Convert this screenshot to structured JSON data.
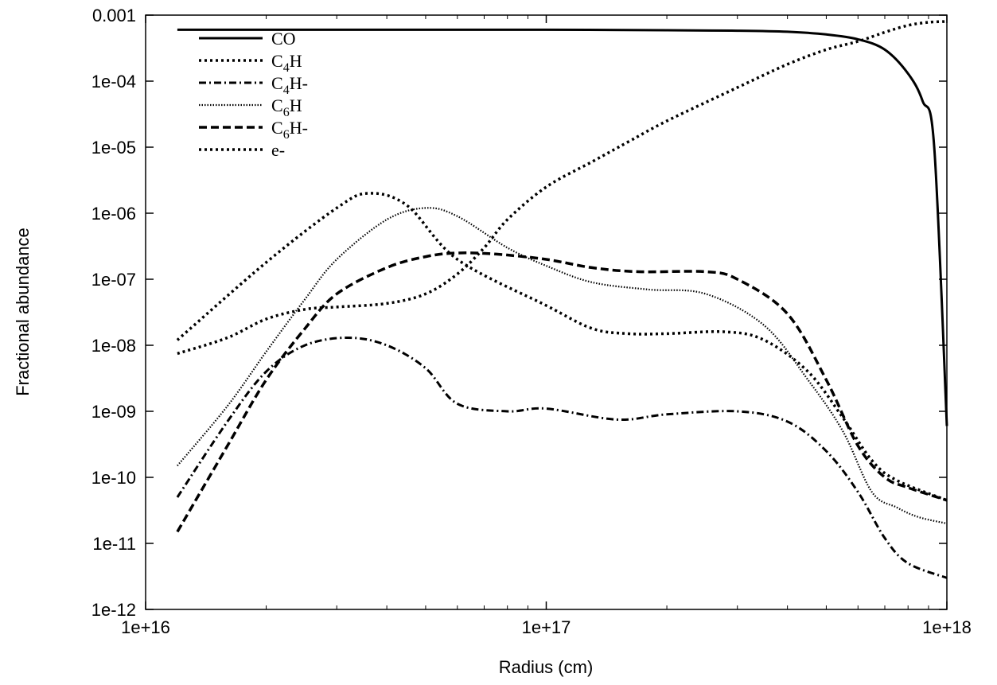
{
  "chart_data": {
    "type": "line",
    "xlabel": "Radius (cm)",
    "ylabel": "Fractional abundance",
    "x_scale": "log",
    "y_scale": "log",
    "xlim": [
      1e+16,
      1e+18
    ],
    "ylim": [
      1e-12,
      0.001
    ],
    "x_ticks": [
      {
        "value": 1e+16,
        "label": "1e+16"
      },
      {
        "value": 1e+17,
        "label": "1e+17"
      },
      {
        "value": 1e+18,
        "label": "1e+18"
      }
    ],
    "y_ticks": [
      {
        "value": 1e-12,
        "label": "1e-12"
      },
      {
        "value": 1e-11,
        "label": "1e-11"
      },
      {
        "value": 1e-10,
        "label": "1e-10"
      },
      {
        "value": 1e-09,
        "label": "1e-09"
      },
      {
        "value": 1e-08,
        "label": "1e-08"
      },
      {
        "value": 1e-07,
        "label": "1e-07"
      },
      {
        "value": 1e-06,
        "label": "1e-06"
      },
      {
        "value": 1e-05,
        "label": "1e-05"
      },
      {
        "value": 0.0001,
        "label": "1e-04"
      },
      {
        "value": 0.001,
        "label": "0.001"
      }
    ],
    "legend_position": "top-left",
    "grid": false,
    "series": [
      {
        "name": "CO",
        "legend_base": "CO",
        "legend_sub": "",
        "legend_sup": "",
        "style": "solid",
        "x": [
          1.2e+16,
          5e+16,
          1e+17,
          2e+17,
          3e+17,
          4e+17,
          5e+17,
          6e+17,
          7e+17,
          8e+17,
          8.7e+17,
          9.3e+17,
          1e+18
        ],
        "y": [
          0.0006,
          0.0006,
          0.0006,
          0.00059,
          0.00058,
          0.00056,
          0.00051,
          0.00043,
          0.0003,
          0.00013,
          5e-05,
          1e-05,
          6e-10
        ]
      },
      {
        "name": "C4H",
        "legend_base": "C",
        "legend_sub": "4",
        "legend_sup": "H",
        "style": "dotted",
        "x": [
          1.2e+16,
          2e+16,
          3e+16,
          3.6e+16,
          4.5e+16,
          6e+16,
          1e+17,
          1.3e+17,
          1.6e+17,
          2e+17,
          2.8e+17,
          3.5e+17,
          4.5e+17,
          5.5e+17,
          6.5e+17,
          7.5e+17,
          1e+18
        ],
        "y": [
          1.2e-08,
          1.8e-07,
          1.2e-06,
          2e-06,
          1.3e-06,
          2e-07,
          4e-08,
          1.8e-08,
          1.5e-08,
          1.5e-08,
          1.6e-08,
          1.2e-08,
          4e-09,
          8e-10,
          1.8e-10,
          9e-11,
          4.5e-11
        ]
      },
      {
        "name": "C4H-",
        "legend_base": "C",
        "legend_sub": "4",
        "legend_sup": "H-",
        "style": "dashdot",
        "x": [
          1.2e+16,
          1.6e+16,
          2e+16,
          2.5e+16,
          3.2e+16,
          4e+16,
          5e+16,
          6e+16,
          8e+16,
          1e+17,
          1.5e+17,
          2e+17,
          3e+17,
          4e+17,
          5e+17,
          6e+17,
          7e+17,
          8e+17,
          1e+18
        ],
        "y": [
          5e-11,
          7e-10,
          4e-09,
          1e-08,
          1.3e-08,
          1e-08,
          4.5e-09,
          1.3e-09,
          1e-09,
          1.1e-09,
          7.5e-10,
          9e-10,
          1e-09,
          7e-10,
          2.5e-10,
          6e-11,
          1.2e-11,
          5e-12,
          3e-12
        ]
      },
      {
        "name": "C6H",
        "legend_base": "C",
        "legend_sub": "6",
        "legend_sup": "H",
        "style": "fine-dotted",
        "x": [
          1.2e+16,
          1.6e+16,
          2e+16,
          2.5e+16,
          3e+16,
          4e+16,
          5e+16,
          6e+16,
          8e+16,
          1e+17,
          1.3e+17,
          1.8e+17,
          2.5e+17,
          3.5e+17,
          4.5e+17,
          5.5e+17,
          6.5e+17,
          7.5e+17,
          8.5e+17,
          1e+18
        ],
        "y": [
          1.5e-10,
          1.2e-09,
          8e-09,
          5e-08,
          2e-07,
          8e-07,
          1.2e-06,
          9e-07,
          3e-07,
          1.6e-07,
          9e-08,
          7e-08,
          6e-08,
          2e-08,
          3e-09,
          5e-10,
          6e-11,
          3.5e-11,
          2.5e-11,
          2e-11
        ]
      },
      {
        "name": "C6H-",
        "legend_base": "C",
        "legend_sub": "6",
        "legend_sup": "H-",
        "style": "dashed",
        "x": [
          1.2e+16,
          1.6e+16,
          2e+16,
          2.5e+16,
          3e+16,
          4e+16,
          5e+16,
          6e+16,
          7.5e+16,
          1e+17,
          1.3e+17,
          1.7e+17,
          2.5e+17,
          3e+17,
          4e+17,
          5e+17,
          6e+17,
          7e+17,
          8e+17,
          1e+18
        ],
        "y": [
          1.5e-11,
          3e-10,
          3e-09,
          1.8e-08,
          6e-08,
          1.5e-07,
          2.2e-07,
          2.5e-07,
          2.4e-07,
          2e-07,
          1.5e-07,
          1.3e-07,
          1.3e-07,
          1e-07,
          3e-08,
          3e-09,
          3e-10,
          1e-10,
          7e-11,
          4.5e-11
        ]
      },
      {
        "name": "e-",
        "legend_base": "e-",
        "legend_sub": "",
        "legend_sup": "",
        "style": "dotted",
        "x": [
          1.2e+16,
          1.6e+16,
          2e+16,
          2.5e+16,
          3e+16,
          4e+16,
          5e+16,
          6e+16,
          7e+16,
          8e+16,
          1e+17,
          1.3e+17,
          1.6e+17,
          2e+17,
          3e+17,
          4e+17,
          5e+17,
          6e+17,
          7e+17,
          8e+17,
          9e+17,
          1e+18
        ],
        "y": [
          7.5e-09,
          1.3e-08,
          2.5e-08,
          3.5e-08,
          3.8e-08,
          4.3e-08,
          6e-08,
          1.2e-07,
          3e-07,
          8e-07,
          2.5e-06,
          6e-06,
          1.2e-05,
          2.5e-05,
          8e-05,
          0.00018,
          0.0003,
          0.0004,
          0.00055,
          0.0007,
          0.00078,
          0.0008
        ]
      }
    ]
  }
}
